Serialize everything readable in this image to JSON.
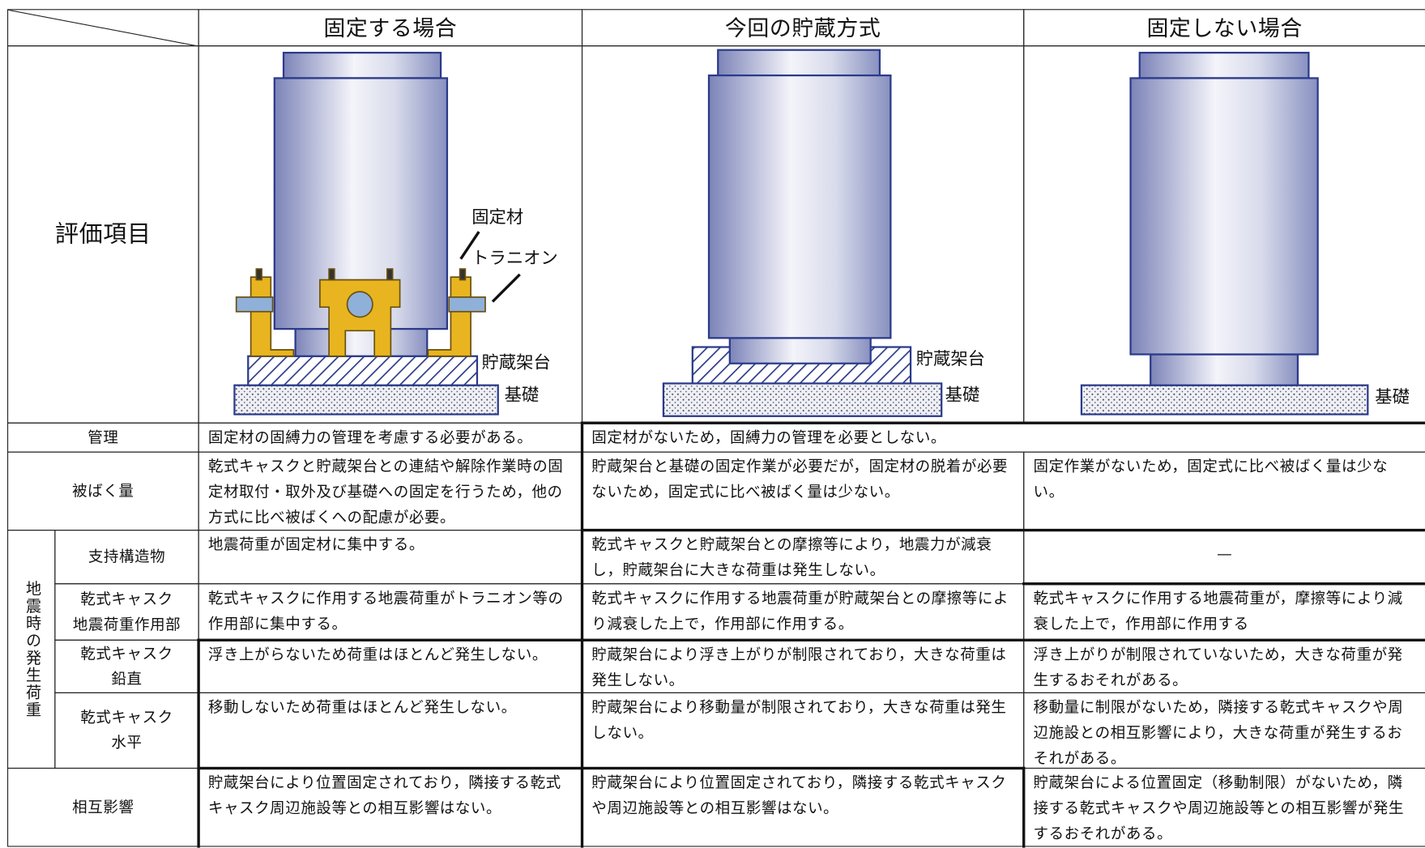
{
  "header": {
    "columns": [
      "固定する場合",
      "今回の貯蔵方式",
      "固定しない場合"
    ]
  },
  "illustration_row": {
    "label": "評価項目",
    "figures": [
      {
        "labels": [
          "固定材",
          "トラニオン",
          "貯蔵架台",
          "基礎"
        ]
      },
      {
        "labels": [
          "貯蔵架台",
          "基礎"
        ]
      },
      {
        "labels": [
          "基礎"
        ]
      }
    ]
  },
  "rows_top": [
    {
      "label": [
        "管理"
      ],
      "cells": [
        "固定材の固縛力の管理を考慮する必要がある。",
        "固定材がないため，固縛力の管理を必要としない。"
      ]
    },
    {
      "label": [
        "被ばく量"
      ],
      "cells": [
        "乾式キャスクと貯蔵架台との連結や解除作業時の固定材取付・取外及び基礎への固定を行うため，他の方式に比べ被ばくへの配慮が必要。",
        "貯蔵架台と基礎の固定作業が必要だが，固定材の脱着が必要ないため，固定式に比べ被ばく量は少ない。",
        "固定作業がないため，固定式に比べ被ばく量は少ない。"
      ]
    }
  ],
  "seismic_group": {
    "label": "地震時の発生荷重",
    "rows": [
      {
        "label": [
          "支持構造物"
        ],
        "cells": [
          "地震荷重が固定材に集中する。",
          "乾式キャスクと貯蔵架台との摩擦等により，地震力が減衰し，貯蔵架台に大きな荷重は発生しない。",
          "—"
        ]
      },
      {
        "label": [
          "乾式キャスク",
          "地震荷重作用部"
        ],
        "cells": [
          "乾式キャスクに作用する地震荷重がトラニオン等の作用部に集中する。",
          "乾式キャスクに作用する地震荷重が貯蔵架台との摩擦等により減衰した上で，作用部に作用する。",
          "乾式キャスクに作用する地震荷重が，摩擦等により減衰した上で，作用部に作用する"
        ]
      },
      {
        "label": [
          "乾式キャスク",
          "鉛直"
        ],
        "cells": [
          "浮き上がらないため荷重はほとんど発生しない。",
          "貯蔵架台により浮き上がりが制限されており，大きな荷重は発生しない。",
          "浮き上がりが制限されていないため，大きな荷重が発生するおそれがある。"
        ]
      },
      {
        "label": [
          "乾式キャスク",
          "水平"
        ],
        "cells": [
          "移動しないため荷重はほとんど発生しない。",
          "貯蔵架台により移動量が制限されており，大きな荷重は発生しない。",
          "移動量に制限がないため，隣接する乾式キャスクや周辺施設との相互影響により，大きな荷重が発生するおそれがある。"
        ]
      }
    ]
  },
  "rows_bottom": [
    {
      "label": [
        "相互影響"
      ],
      "cells": [
        "貯蔵架台により位置固定されており，隣接する乾式キャスク周辺施設等との相互影響はない。",
        "貯蔵架台により位置固定されており，隣接する乾式キャスクや周辺施設等との相互影響はない。",
        "貯蔵架台による位置固定（移動制限）がないため，隣接する乾式キャスクや周辺施設等との相互影響が発生するおそれがある。"
      ]
    }
  ]
}
